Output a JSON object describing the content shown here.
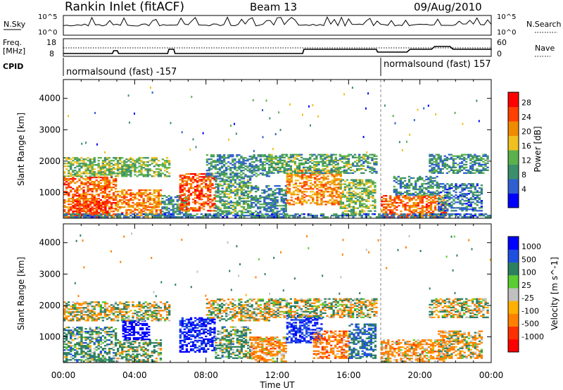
{
  "header": {
    "station": "Rankin Inlet (fitACF)",
    "beam": "Beam 13",
    "date": "09/Aug/2010"
  },
  "top_panels": {
    "nsky_label": "N.Sky",
    "nsky_ticks": [
      "10^5",
      "10^0"
    ],
    "nsearch_label": "N.Search",
    "nsearch_ticks": [
      "10^5",
      "10^0"
    ],
    "freq_label": "Freq.",
    "freq_unit": "[MHz]",
    "freq_ticks": [
      "18",
      "8"
    ],
    "nave_label": "Nave",
    "nave_ticks": [
      "60",
      "0"
    ],
    "cpid_label": "CPID",
    "cpid_segments": [
      {
        "text": "normalsound (fast) -157",
        "start_hour": 0
      },
      {
        "text": "normalsound (fast) 157",
        "start_hour": 18.0
      }
    ]
  },
  "colors": {
    "power_scale": [
      "#0000ff",
      "#2f5fd0",
      "#3c8f6a",
      "#5bb14c",
      "#f0c020",
      "#f08a00",
      "#ff4000",
      "#ff0000"
    ],
    "velocity_scale": [
      "#0000ff",
      "#1f4fe0",
      "#2c8060",
      "#5acd32",
      "#c0c0c0",
      "#ffb000",
      "#ff8000",
      "#ff3000",
      "#ff0000"
    ],
    "ground_scatter": "#c0c0c0"
  },
  "chart_data": [
    {
      "type": "heatmap",
      "name": "Power",
      "ylabel": "Slant Range [km]",
      "xlabel": "Time UT",
      "x_ticks": [
        "00:00",
        "04:00",
        "08:00",
        "12:00",
        "16:00",
        "20:00",
        "00:00"
      ],
      "x_range_hours": [
        0,
        24
      ],
      "y_ticks": [
        "1000",
        "2000",
        "3000",
        "4000"
      ],
      "ylim": [
        180,
        4600
      ],
      "colorbar_label": "Power [dB]",
      "colorbar_ticks": [
        "28",
        "24",
        "20",
        "16",
        "12",
        "8",
        "4"
      ],
      "colorbar_range": [
        0,
        32
      ],
      "scatter_patches": [
        {
          "t": [
            0.0,
            3.0
          ],
          "r": [
            200,
            1500
          ],
          "v": 24
        },
        {
          "t": [
            0.5,
            2.5
          ],
          "r": [
            200,
            700
          ],
          "v": 28
        },
        {
          "t": [
            3.0,
            5.5
          ],
          "r": [
            200,
            1100
          ],
          "v": 22
        },
        {
          "t": [
            0.0,
            6.0
          ],
          "r": [
            1500,
            2100
          ],
          "v": 14
        },
        {
          "t": [
            5.5,
            7.0
          ],
          "r": [
            200,
            900
          ],
          "v": 10
        },
        {
          "t": [
            6.5,
            8.5
          ],
          "r": [
            400,
            1600
          ],
          "v": 26
        },
        {
          "t": [
            8.5,
            10.5
          ],
          "r": [
            300,
            1500
          ],
          "v": 12
        },
        {
          "t": [
            8.0,
            11.5
          ],
          "r": [
            1500,
            2200
          ],
          "v": 10
        },
        {
          "t": [
            10.5,
            12.5
          ],
          "r": [
            200,
            1200
          ],
          "v": 9
        },
        {
          "t": [
            12.5,
            15.5
          ],
          "r": [
            600,
            1700
          ],
          "v": 22
        },
        {
          "t": [
            11.5,
            17.5
          ],
          "r": [
            1600,
            2200
          ],
          "v": 12
        },
        {
          "t": [
            15.5,
            17.5
          ],
          "r": [
            300,
            1400
          ],
          "v": 14
        },
        {
          "t": [
            17.8,
            21.5
          ],
          "r": [
            200,
            900
          ],
          "v": 24
        },
        {
          "t": [
            18.5,
            21.0
          ],
          "r": [
            900,
            1500
          ],
          "v": 10
        },
        {
          "t": [
            20.5,
            23.8
          ],
          "r": [
            1600,
            2200
          ],
          "v": 10
        },
        {
          "t": [
            21.0,
            23.5
          ],
          "r": [
            400,
            1300
          ],
          "v": 8
        },
        {
          "t": [
            0.0,
            24.0
          ],
          "r": [
            200,
            300
          ],
          "v": 8
        }
      ]
    },
    {
      "type": "heatmap",
      "name": "Velocity",
      "ylabel": "Slant Range [km]",
      "xlabel": "Time UT",
      "x_ticks": [
        "00:00",
        "04:00",
        "08:00",
        "12:00",
        "16:00",
        "20:00",
        "00:00"
      ],
      "x_range_hours": [
        0,
        24
      ],
      "y_ticks": [
        "1000",
        "2000",
        "3000",
        "4000"
      ],
      "ylim": [
        180,
        4600
      ],
      "colorbar_label": "Velocity [m s^-1]",
      "colorbar_ticks": [
        "1000",
        "500",
        "100",
        "25",
        "-25",
        "-100",
        "-500",
        "-1000"
      ],
      "scatter_patches": [
        {
          "t": [
            0.0,
            3.0
          ],
          "r": [
            200,
            1300
          ],
          "v": 150
        },
        {
          "t": [
            3.0,
            5.5
          ],
          "r": [
            200,
            900
          ],
          "v": 100
        },
        {
          "t": [
            3.3,
            4.8
          ],
          "r": [
            900,
            1500
          ],
          "v": 1000
        },
        {
          "t": [
            0.0,
            6.0
          ],
          "r": [
            1500,
            2100
          ],
          "v": 0
        },
        {
          "t": [
            6.5,
            8.5
          ],
          "r": [
            500,
            1600
          ],
          "v": 800
        },
        {
          "t": [
            8.5,
            10.5
          ],
          "r": [
            300,
            1300
          ],
          "v": 120
        },
        {
          "t": [
            8.0,
            11.5
          ],
          "r": [
            1500,
            2200
          ],
          "v": 0
        },
        {
          "t": [
            10.5,
            12.5
          ],
          "r": [
            200,
            1000
          ],
          "v": -150
        },
        {
          "t": [
            12.5,
            14.5
          ],
          "r": [
            800,
            1700
          ],
          "v": 700
        },
        {
          "t": [
            14.0,
            16.0
          ],
          "r": [
            300,
            1200
          ],
          "v": -200
        },
        {
          "t": [
            11.5,
            17.5
          ],
          "r": [
            1600,
            2200
          ],
          "v": 0
        },
        {
          "t": [
            16.0,
            17.5
          ],
          "r": [
            300,
            1400
          ],
          "v": 300
        },
        {
          "t": [
            17.8,
            21.5
          ],
          "r": [
            200,
            900
          ],
          "v": -120
        },
        {
          "t": [
            20.5,
            23.8
          ],
          "r": [
            1600,
            2200
          ],
          "v": 0
        },
        {
          "t": [
            21.0,
            23.5
          ],
          "r": [
            300,
            1200
          ],
          "v": -60
        }
      ]
    }
  ]
}
